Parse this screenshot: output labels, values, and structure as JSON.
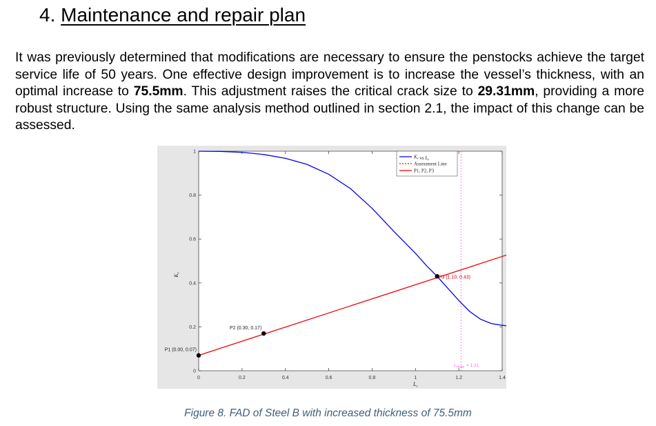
{
  "section": {
    "number": "4.",
    "title": "Maintenance and repair plan"
  },
  "paragraph": {
    "p1": "It was previously determined that modifications are necessary to ensure the penstocks achieve the target service life of 50 years. One effective design improvement is to increase the vessel’s thickness, with an optimal increase to ",
    "b1": "75.5mm",
    "p2": ". This adjustment raises the critical crack size to ",
    "b2": "29.31mm",
    "p3": ", providing a more robust structure. Using the same analysis method outlined in section 2.1, the impact of this change can be assessed."
  },
  "caption": "Figure 8. FAD of Steel B with increased thickness of 75.5mm",
  "colors": {
    "fad_curve": "#0000ee",
    "assessment_line": "#ee0000",
    "lrmax_line": "#ff66dd",
    "plot_background": "#e6e6e6",
    "point": "#000000",
    "p3_label": "#dd0000"
  },
  "chart_data": {
    "type": "line",
    "xlabel": "L_r",
    "ylabel": "K_r",
    "xlim": [
      0,
      1.4
    ],
    "ylim": [
      0,
      1
    ],
    "xticks": [
      "0",
      "0.2",
      "0.4",
      "0.6",
      "0.8",
      "1",
      "1.2",
      "1.4"
    ],
    "yticks": [
      "0",
      "0.2",
      "0.4",
      "0.6",
      "0.8",
      "1"
    ],
    "grid": false,
    "legend_position": "top-right",
    "legend": [
      "K_r vs L_r",
      "Assessment Line",
      "P1, P2, P3"
    ],
    "series": [
      {
        "name": "K_r vs L_r",
        "x": [
          0,
          0.1,
          0.2,
          0.3,
          0.4,
          0.5,
          0.6,
          0.7,
          0.8,
          0.9,
          1.0,
          1.05,
          1.1,
          1.15,
          1.2,
          1.25,
          1.3,
          1.35,
          1.4,
          1.42
        ],
        "y": [
          1.0,
          0.999,
          0.995,
          0.985,
          0.968,
          0.94,
          0.895,
          0.83,
          0.74,
          0.635,
          0.535,
          0.48,
          0.43,
          0.375,
          0.32,
          0.27,
          0.235,
          0.215,
          0.207,
          0.205
        ]
      },
      {
        "name": "Assessment Line",
        "x": [
          0,
          1.42
        ],
        "y": [
          0.07,
          0.527
        ]
      }
    ],
    "points": [
      {
        "name": "P1",
        "label": "P1 (0.00, 0.07)",
        "x": 0.0,
        "y": 0.07
      },
      {
        "name": "P2",
        "label": "P2 (0.30, 0.17)",
        "x": 0.3,
        "y": 0.17
      },
      {
        "name": "P3",
        "label": "P3 (1.10, 0.43)",
        "x": 1.1,
        "y": 0.43
      }
    ],
    "lrmax": {
      "value": 1.21,
      "label_main": "L",
      "label_sub": "rmax",
      "label_value": "= 1.21"
    }
  }
}
